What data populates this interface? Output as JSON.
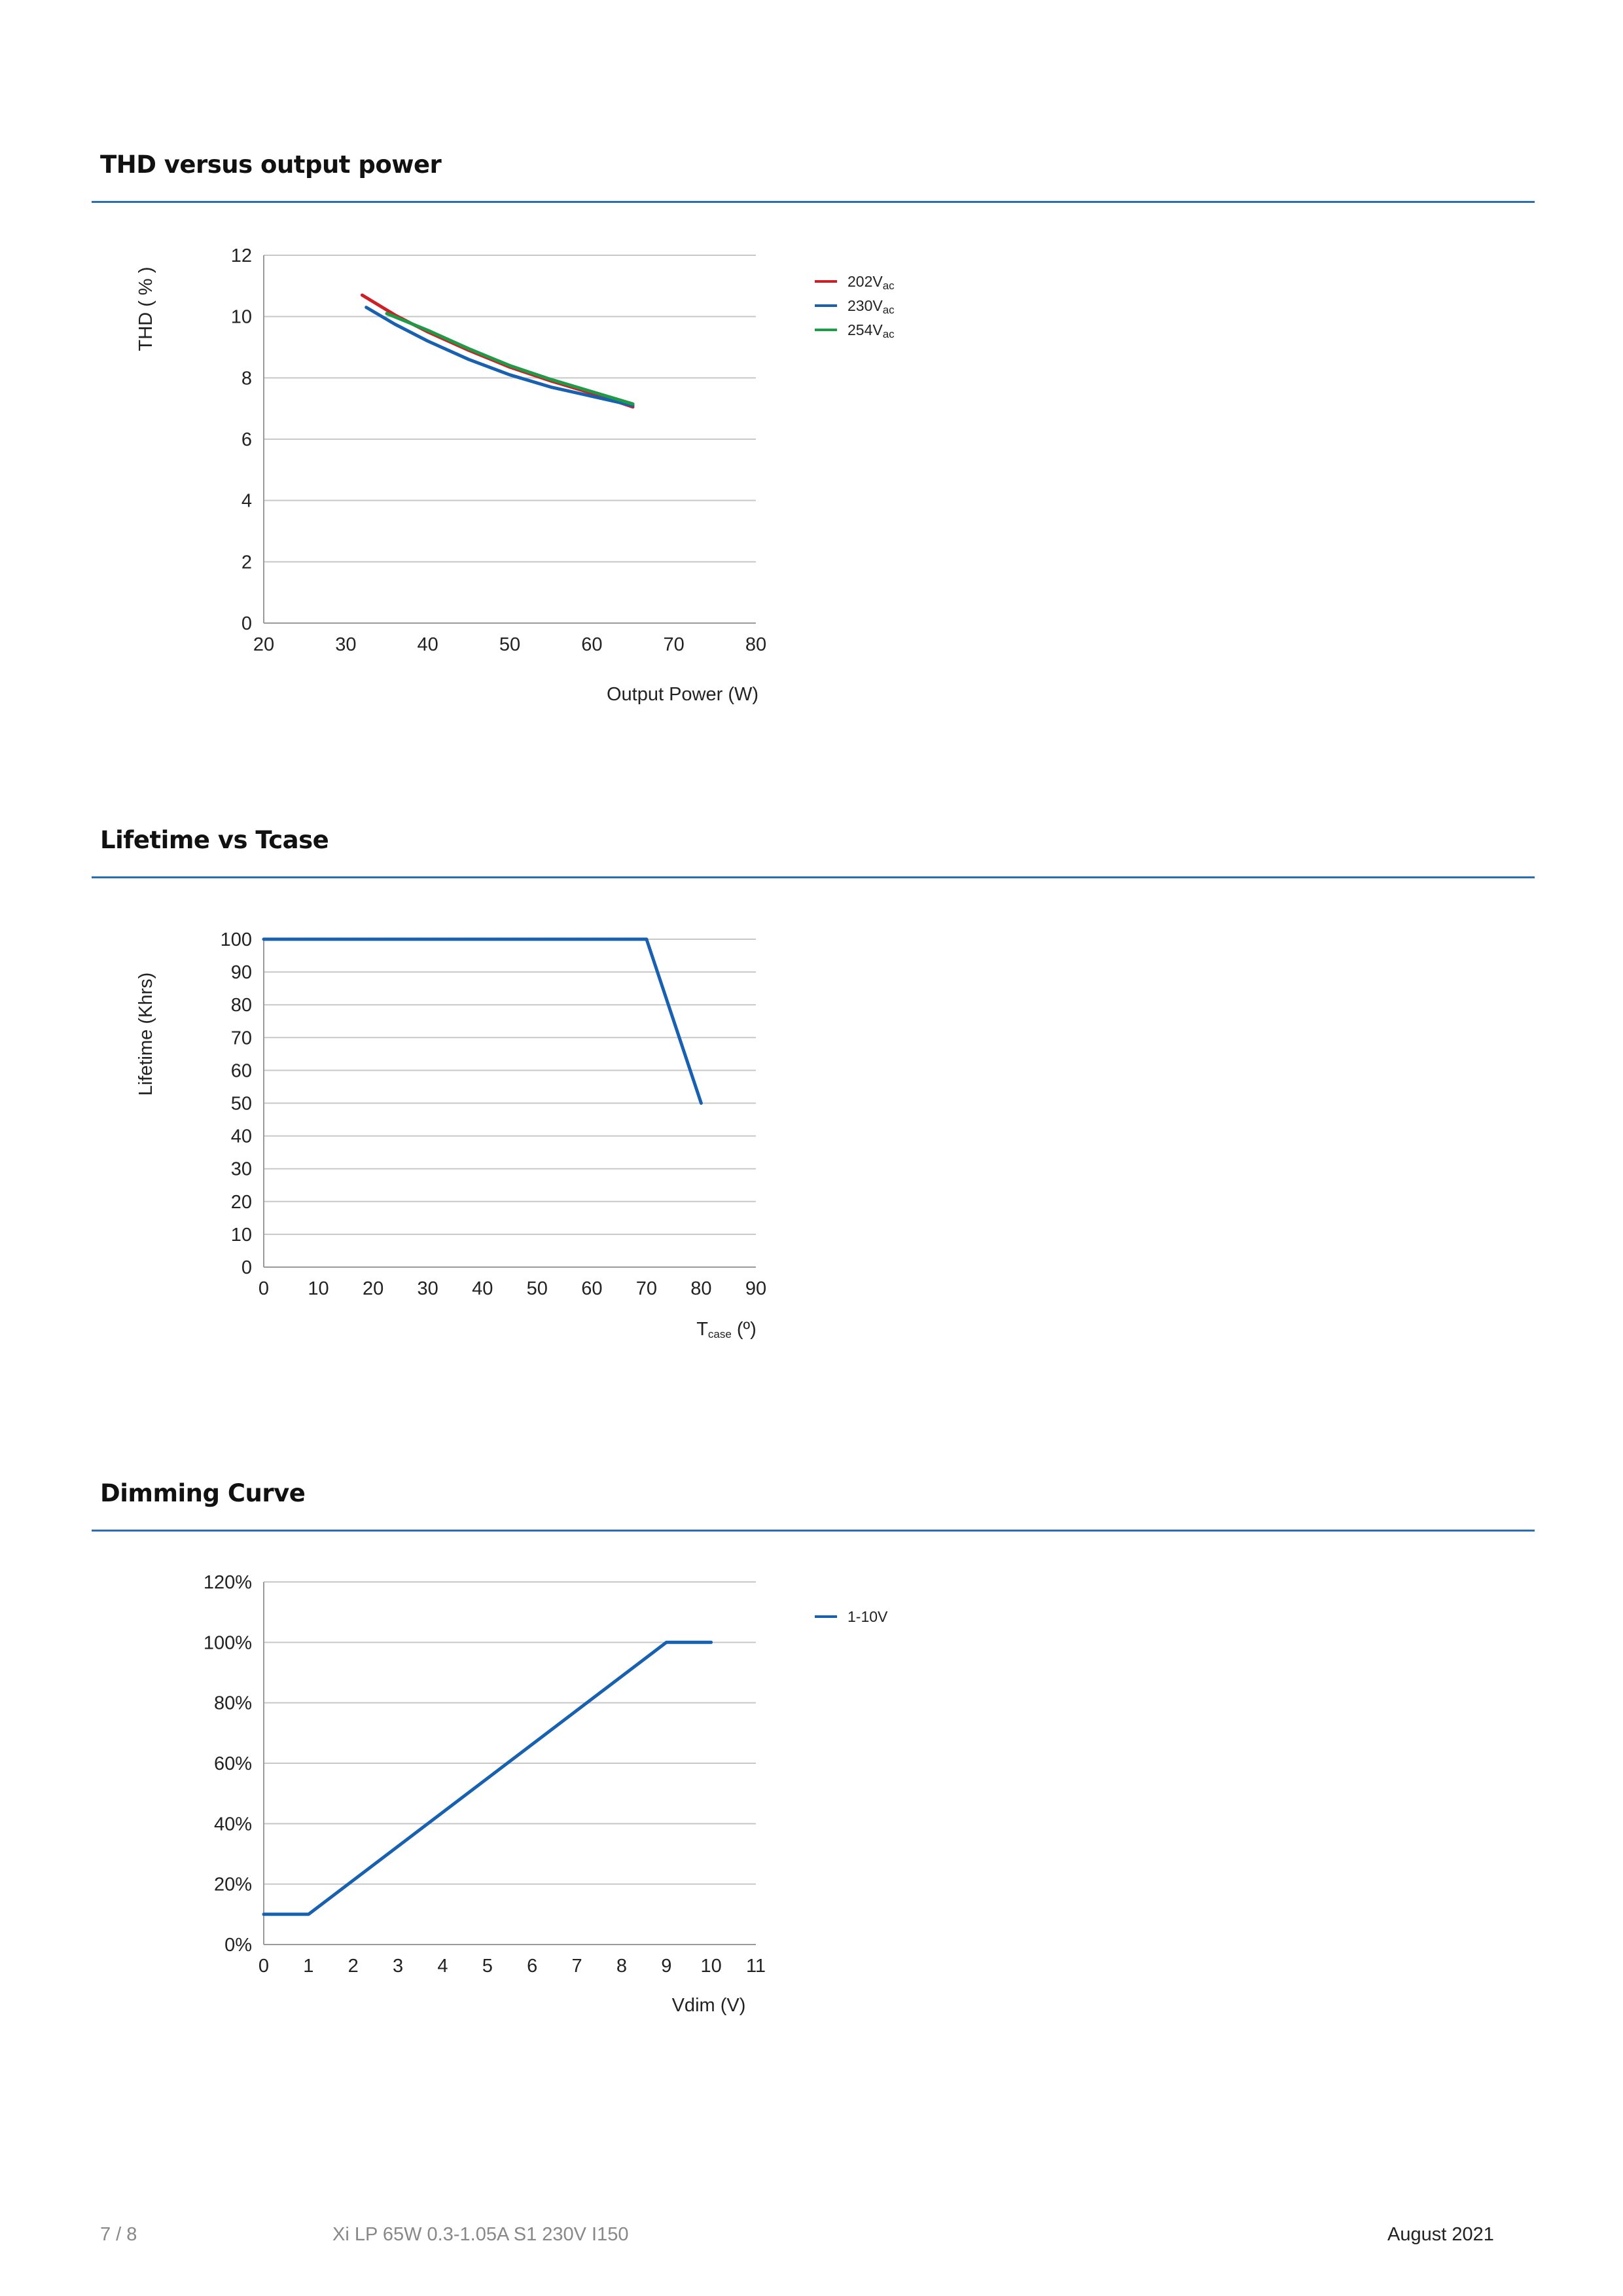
{
  "sections": [
    {
      "title": "THD versus output power"
    },
    {
      "title": "Lifetime vs Tcase"
    },
    {
      "title": "Dimming Curve"
    }
  ],
  "colors": {
    "rule": "#2a6db5",
    "grid": "#c8c8c8",
    "red": "#cc1f26",
    "blue": "#1761b0",
    "green": "#1f9a46"
  },
  "chart_data": [
    {
      "type": "line",
      "title": "THD versus output power",
      "xlabel": "Output Power (W)",
      "ylabel": "THD ( % )",
      "xlim": [
        20,
        80
      ],
      "ylim": [
        0,
        12
      ],
      "xticks": [
        "20",
        "30",
        "40",
        "50",
        "60",
        "70",
        "80"
      ],
      "yticks": [
        "0",
        "2",
        "4",
        "6",
        "8",
        "10",
        "12"
      ],
      "legend_position": "right",
      "series": [
        {
          "name": "202V",
          "name_sub": "ac",
          "color": "#cc1f26",
          "x": [
            32,
            36,
            40,
            45,
            50,
            55,
            60,
            65
          ],
          "y": [
            10.7,
            10.05,
            9.5,
            8.9,
            8.35,
            7.9,
            7.5,
            7.05
          ]
        },
        {
          "name": "230V",
          "name_sub": "ac",
          "color": "#1761b0",
          "x": [
            32.5,
            36,
            40,
            45,
            50,
            55,
            60,
            65
          ],
          "y": [
            10.3,
            9.75,
            9.2,
            8.6,
            8.1,
            7.7,
            7.4,
            7.1
          ]
        },
        {
          "name": "254V",
          "name_sub": "ac",
          "color": "#1f9a46",
          "x": [
            35,
            40,
            45,
            50,
            55,
            60,
            65
          ],
          "y": [
            10.1,
            9.55,
            8.95,
            8.4,
            7.95,
            7.55,
            7.15
          ]
        }
      ]
    },
    {
      "type": "line",
      "title": "Lifetime vs Tcase",
      "xlabel": "T",
      "xlabel_sub": "case",
      "xlabel_suffix": " (º)",
      "ylabel": "Lifetime (Khrs)",
      "xlim": [
        0,
        90
      ],
      "ylim": [
        0,
        100
      ],
      "xticks": [
        "0",
        "10",
        "20",
        "30",
        "40",
        "50",
        "60",
        "70",
        "80",
        "90"
      ],
      "yticks": [
        "0",
        "10",
        "20",
        "30",
        "40",
        "50",
        "60",
        "70",
        "80",
        "90",
        "100"
      ],
      "series": [
        {
          "name": "",
          "color": "#1761b0",
          "x": [
            0,
            70,
            80
          ],
          "y": [
            100,
            100,
            50
          ]
        }
      ]
    },
    {
      "type": "line",
      "title": "Dimming Curve",
      "xlabel": "Vdim (V)",
      "ylabel": "",
      "xlim": [
        0,
        11
      ],
      "ylim": [
        0,
        120
      ],
      "xticks": [
        "0",
        "1",
        "2",
        "3",
        "4",
        "5",
        "6",
        "7",
        "8",
        "9",
        "10",
        "11"
      ],
      "yticks": [
        "0%",
        "20%",
        "40%",
        "60%",
        "80%",
        "100%",
        "120%"
      ],
      "legend_position": "right",
      "series": [
        {
          "name": "1-10V",
          "color": "#1761b0",
          "x": [
            0,
            1,
            9,
            10
          ],
          "y": [
            10,
            10,
            100,
            100
          ]
        }
      ]
    }
  ],
  "footer": {
    "page": "7 / 8",
    "product": "Xi LP 65W 0.3-1.05A S1 230V I150",
    "date": "August 2021"
  }
}
